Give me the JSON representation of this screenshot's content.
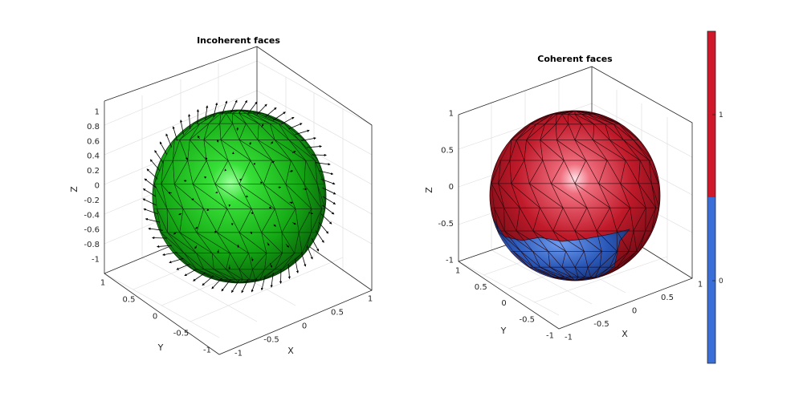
{
  "chart_data": [
    {
      "type": "surface",
      "title": "Incoherent faces",
      "xlabel": "X",
      "ylabel": "Y",
      "zlabel": "Z",
      "x_ticks": [
        "-1",
        "-0.5",
        "0",
        "0.5",
        "1"
      ],
      "y_ticks": [
        "1",
        "0.5",
        "0",
        "-0.5",
        "-1"
      ],
      "z_ticks": [
        "1",
        "0.8",
        "0.6",
        "0.4",
        "0.2",
        "0",
        "-0.2",
        "-0.4",
        "-0.6",
        "-0.8",
        "-1"
      ],
      "xlim": [
        -1,
        1
      ],
      "ylim": [
        -1,
        1
      ],
      "zlim": [
        -1,
        1
      ],
      "grid": true,
      "surface": "unit sphere (geodesic triangulation)",
      "face_color": "#22bb22",
      "normals": "arrows pointing outward from each face"
    },
    {
      "type": "surface",
      "title": "Coherent faces",
      "xlabel": "X",
      "ylabel": "Y",
      "zlabel": "Z",
      "x_ticks": [
        "-1",
        "-0.5",
        "0",
        "0.5",
        "1"
      ],
      "y_ticks": [
        "1",
        "0.5",
        "0",
        "-0.5",
        "-1"
      ],
      "z_ticks": [
        "1",
        "0.5",
        "0",
        "-0.5",
        "-1"
      ],
      "xlim": [
        -1,
        1
      ],
      "ylim": [
        -1,
        1
      ],
      "zlim": [
        -1,
        1
      ],
      "grid": true,
      "surface": "unit sphere colored by coherence",
      "colorbar": {
        "ticks": [
          "1",
          "0"
        ],
        "colors": {
          "1": "#d0182a",
          "0": "#3a6ed8"
        }
      }
    }
  ]
}
